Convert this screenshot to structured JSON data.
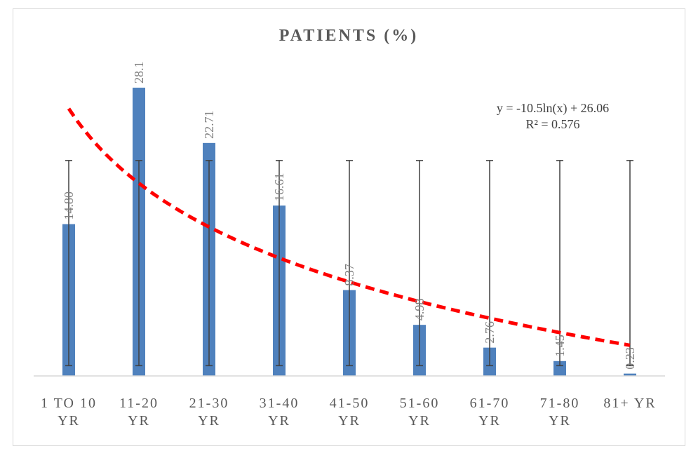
{
  "chart_data": {
    "type": "bar",
    "title": "PATIENTS (%)",
    "categories": [
      [
        "1 TO 10",
        "YR"
      ],
      [
        "11-20",
        "YR"
      ],
      [
        "21-30",
        "YR"
      ],
      [
        "31-40",
        "YR"
      ],
      [
        "41-50",
        "YR"
      ],
      [
        "51-60",
        "YR"
      ],
      [
        "61-70",
        "YR"
      ],
      [
        "71-80",
        "YR"
      ],
      [
        "81+ YR"
      ]
    ],
    "values": [
      14.8,
      28.1,
      22.71,
      16.61,
      8.37,
      4.98,
      2.76,
      1.45,
      0.23
    ],
    "data_labels": [
      "14.80",
      "28.1",
      "22.71",
      "16.61",
      "8.37",
      "4.98",
      "2.76",
      "1.45",
      "0.23"
    ],
    "error_bars": {
      "low": 1,
      "high": 21
    },
    "ylim": [
      0,
      28.1
    ],
    "trendline": {
      "type": "logarithmic",
      "a": -10.5,
      "b": 26.06,
      "equation": "y = -10.5ln(x) + 26.06",
      "r_squared": "R² = 0.576"
    },
    "xlabel": "",
    "ylabel": "",
    "grid": false,
    "colors": {
      "bar": "#4f81bd",
      "trendline": "#ff0000",
      "error_bar": "#404040",
      "axis": "#d9d9d9"
    }
  }
}
